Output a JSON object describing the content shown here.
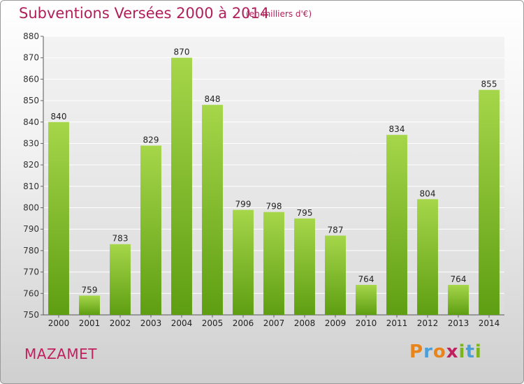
{
  "title": "Subventions Versées 2000 à 2014",
  "subtitle": "(en milliers d'€)",
  "city": "MAZAMET",
  "logo": {
    "letters": [
      "P",
      "r",
      "o",
      "x",
      "i",
      "t",
      "i"
    ],
    "colors": [
      "#e8841a",
      "#4a9fd8",
      "#e8841a",
      "#c0205e",
      "#7cb518",
      "#4a9fd8",
      "#7cb518"
    ]
  },
  "colors": {
    "bar_top": "#a6d64a",
    "bar_bottom": "#5e9e12",
    "title": "#b01f5a"
  },
  "chart_data": {
    "type": "bar",
    "categories": [
      "2000",
      "2001",
      "2002",
      "2003",
      "2004",
      "2005",
      "2006",
      "2007",
      "2008",
      "2009",
      "2010",
      "2011",
      "2012",
      "2013",
      "2014"
    ],
    "values": [
      840,
      759,
      783,
      829,
      870,
      848,
      799,
      798,
      795,
      787,
      764,
      834,
      804,
      764,
      855
    ],
    "ylim": [
      750,
      880
    ],
    "yticks": [
      750,
      760,
      770,
      780,
      790,
      800,
      810,
      820,
      830,
      840,
      850,
      860,
      870,
      880
    ],
    "grid": true
  }
}
